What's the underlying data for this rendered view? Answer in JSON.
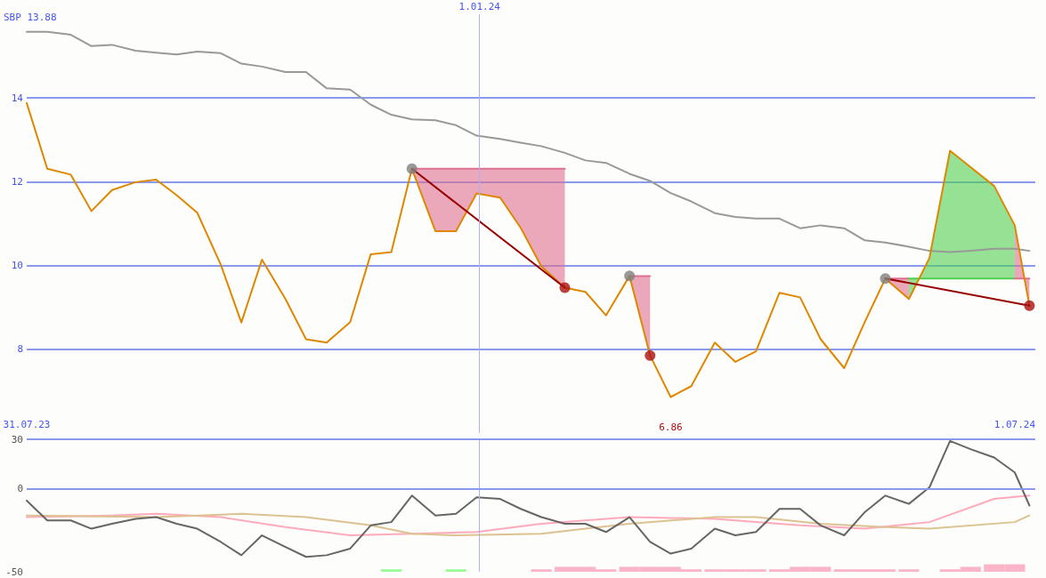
{
  "chart_data": [
    {
      "type": "line",
      "x": [
        "2023-07-31",
        "2023-08-07",
        "2023-08-15",
        "2023-08-22",
        "2023-08-29",
        "2023-09-06",
        "2023-09-13",
        "2023-09-20",
        "2023-09-27",
        "2023-10-05",
        "2023-10-12",
        "2023-10-19",
        "2023-10-27",
        "2023-11-03",
        "2023-11-10",
        "2023-11-18",
        "2023-11-25",
        "2023-12-02",
        "2023-12-09",
        "2023-12-17",
        "2023-12-24",
        "2023-12-31",
        "2024-01-08",
        "2024-01-15",
        "2024-01-22",
        "2024-01-30",
        "2024-02-06",
        "2024-02-13",
        "2024-02-21",
        "2024-02-28",
        "2024-03-06",
        "2024-03-13",
        "2024-03-21",
        "2024-03-28",
        "2024-04-04",
        "2024-04-12",
        "2024-04-19",
        "2024-04-26",
        "2024-05-04",
        "2024-05-11",
        "2024-05-18",
        "2024-05-26",
        "2024-06-02",
        "2024-06-09",
        "2024-06-16",
        "2024-06-24",
        "2024-07-01",
        "2024-07-06"
      ],
      "xlim": [
        "2023-07-31",
        "2024-07-08"
      ],
      "xticks": [
        {
          "value": "2023-07-31",
          "label": "31.07.23"
        },
        {
          "value": "2024-07-01",
          "label": "1.07.24"
        }
      ],
      "ylim": [
        6,
        16
      ],
      "yticks": [
        8,
        10,
        12,
        14
      ],
      "grid": "y",
      "marker": "none",
      "line_style": "solid",
      "ref_lines": [
        {
          "axis": "x",
          "value": "2024-01-01",
          "label": "1.01.24",
          "color": "#aab4f4"
        }
      ],
      "annotations": [
        "SBP 13.88",
        {
          "text": "6.86",
          "x": "2024-03-06",
          "y": 6.86
        }
      ],
      "series": [
        {
          "color": "#999999",
          "values": [
            15.58,
            15.58,
            15.51,
            15.24,
            15.27,
            15.13,
            15.08,
            15.04,
            15.11,
            15.07,
            14.82,
            14.75,
            14.62,
            14.62,
            14.23,
            14.2,
            13.84,
            13.6,
            13.49,
            13.47,
            13.35,
            13.1,
            13.02,
            12.93,
            12.85,
            12.69,
            12.51,
            12.45,
            12.19,
            12.02,
            11.73,
            11.53,
            11.25,
            11.16,
            11.12,
            11.12,
            10.89,
            10.96,
            10.89,
            10.6,
            10.55,
            10.45,
            10.35,
            10.32,
            10.35,
            10.4,
            10.4,
            10.35
          ]
        },
        {
          "type": "line",
          "color": "#e07090",
          "x": [
            "2023-12-09",
            "2023-12-17",
            "2023-12-24",
            "2023-12-31",
            "2024-01-08",
            "2024-01-15",
            "2024-01-22",
            "2024-01-30"
          ],
          "values": [
            12.31,
            12.31,
            12.31,
            12.31,
            12.31,
            12.31,
            12.31,
            12.31
          ],
          "lower": [
            12.31,
            10.82,
            10.82,
            11.72,
            11.62,
            10.9,
            9.98,
            9.47
          ],
          "upper": [
            12.31,
            12.31,
            12.31,
            12.31,
            12.31,
            12.31,
            12.31,
            12.31
          ]
        },
        {
          "type": "line",
          "color": "#e07090",
          "x": [
            "2024-02-21",
            "2024-02-28"
          ],
          "values": [
            9.75,
            9.75
          ],
          "lower": [
            9.75,
            7.85
          ],
          "upper": [
            9.75,
            9.75
          ]
        },
        {
          "type": "line",
          "color": "#e07090",
          "x": [
            "2024-05-18",
            "2024-05-26"
          ],
          "values": [
            9.69,
            9.69
          ],
          "lower": [
            9.69,
            9.2
          ],
          "upper": [
            9.69,
            9.69
          ]
        },
        {
          "type": "line",
          "color": "#50d050",
          "x": [
            "2024-05-26",
            "2024-06-02",
            "2024-06-09",
            "2024-06-16",
            "2024-06-24",
            "2024-07-01"
          ],
          "values": [
            9.69,
            9.69,
            9.69,
            9.69,
            9.69,
            9.69
          ],
          "lower": [
            9.69,
            9.69,
            9.69,
            9.69,
            9.69,
            9.69
          ],
          "upper": [
            9.2,
            10.18,
            12.74,
            12.35,
            11.9,
            10.96
          ]
        },
        {
          "type": "line",
          "color": "#e07090",
          "x": [
            "2024-07-01",
            "2024-07-06"
          ],
          "values": [
            9.69,
            9.69
          ],
          "lower": [
            9.69,
            9.69
          ],
          "upper": [
            10.96,
            9.04
          ]
        },
        {
          "color": "#dd8800",
          "values": [
            13.88,
            12.31,
            12.17,
            11.3,
            11.8,
            11.99,
            12.05,
            11.68,
            11.26,
            10.02,
            8.64,
            10.14,
            9.2,
            8.24,
            8.16,
            8.65,
            10.27,
            10.32,
            12.31,
            10.82,
            10.82,
            11.72,
            11.62,
            10.9,
            9.98,
            9.47,
            9.37,
            8.81,
            9.75,
            7.85,
            6.86,
            7.12,
            8.16,
            7.7,
            7.95,
            9.35,
            9.24,
            8.24,
            7.55,
            8.65,
            9.69,
            9.2,
            10.18,
            12.74,
            12.35,
            11.9,
            10.96,
            9.04
          ]
        },
        {
          "color": "#990000",
          "x": [
            "2023-12-09",
            "2024-01-30"
          ],
          "values": [
            12.31,
            9.47
          ]
        },
        {
          "color": "#990000",
          "x": [
            "2024-05-18",
            "2024-07-06"
          ],
          "values": [
            9.69,
            9.04
          ]
        },
        {
          "type": "scatter",
          "marker": "circle",
          "color": "#808080",
          "x": [
            "2023-12-09",
            "2024-02-21",
            "2024-05-18"
          ],
          "values": [
            12.31,
            9.75,
            9.69
          ]
        },
        {
          "type": "scatter",
          "marker": "circle",
          "color": "#aa1111",
          "x": [
            "2024-01-30",
            "2024-02-28",
            "2024-07-06"
          ],
          "values": [
            9.47,
            7.85,
            9.04
          ]
        }
      ]
    },
    {
      "type": "line",
      "x": [
        "2023-07-31",
        "2023-08-07",
        "2023-08-15",
        "2023-08-22",
        "2023-08-29",
        "2023-09-06",
        "2023-09-13",
        "2023-09-20",
        "2023-09-27",
        "2023-10-05",
        "2023-10-12",
        "2023-10-19",
        "2023-10-27",
        "2023-11-03",
        "2023-11-10",
        "2023-11-18",
        "2023-11-25",
        "2023-12-02",
        "2023-12-09",
        "2023-12-17",
        "2023-12-24",
        "2023-12-31",
        "2024-01-08",
        "2024-01-15",
        "2024-01-22",
        "2024-01-30",
        "2024-02-06",
        "2024-02-13",
        "2024-02-21",
        "2024-02-28",
        "2024-03-06",
        "2024-03-13",
        "2024-03-21",
        "2024-03-28",
        "2024-04-04",
        "2024-04-12",
        "2024-04-19",
        "2024-04-26",
        "2024-05-04",
        "2024-05-11",
        "2024-05-18",
        "2024-05-26",
        "2024-06-02",
        "2024-06-09",
        "2024-06-16",
        "2024-06-24",
        "2024-07-01",
        "2024-07-06"
      ],
      "xlim": [
        "2023-07-31",
        "2024-07-08"
      ],
      "ylim": [
        -50,
        30
      ],
      "yticks": [
        30,
        0,
        -50
      ],
      "tick_labels": "y",
      "marker": "none",
      "line_style": "solid",
      "ref_lines": [
        {
          "axis": "x",
          "value": "2024-01-01",
          "color": "#aab4f4"
        },
        {
          "axis": "y",
          "value": 30,
          "color": "#8899ee"
        },
        {
          "axis": "y",
          "value": 0,
          "color": "#8899ee"
        }
      ],
      "series": [
        {
          "type": "bar",
          "color": "#98fb98",
          "x": [
            "2023-12-02",
            "2023-12-24"
          ],
          "values": [
            1.5,
            1.5
          ],
          "base": [
            -50,
            -50
          ]
        },
        {
          "type": "bar",
          "color": "#fbb4c8",
          "x": [
            "2024-01-22",
            "2024-01-30",
            "2024-02-06",
            "2024-02-13",
            "2024-02-21",
            "2024-02-28",
            "2024-03-06",
            "2024-03-13",
            "2024-03-21",
            "2024-03-28",
            "2024-04-04",
            "2024-04-12",
            "2024-04-19",
            "2024-04-26",
            "2024-05-04",
            "2024-05-11",
            "2024-05-18",
            "2024-05-26",
            "2024-06-09",
            "2024-06-16",
            "2024-06-24",
            "2024-07-01"
          ],
          "values": [
            1.5,
            3,
            3,
            1.5,
            3,
            3,
            3,
            1.5,
            1.5,
            1.5,
            1.5,
            1.5,
            3,
            3,
            1.5,
            1.5,
            1.5,
            1.5,
            1.5,
            3,
            4.5,
            4.5
          ],
          "base": [
            -50,
            -50,
            -50,
            -50,
            -50,
            -50,
            -50,
            -50,
            -50,
            -50,
            -50,
            -50,
            -50,
            -50,
            -50,
            -50,
            -50,
            -50,
            -50,
            -50,
            -50,
            -50
          ]
        },
        {
          "color": "#ffaabb",
          "x": [
            "2023-07-31",
            "2023-08-29",
            "2023-09-13",
            "2023-10-05",
            "2023-10-27",
            "2023-11-18",
            "2023-12-09",
            "2023-12-31",
            "2024-01-22",
            "2024-02-21",
            "2024-03-21",
            "2024-04-19",
            "2024-05-11",
            "2024-06-02",
            "2024-06-24",
            "2024-07-06"
          ],
          "values": [
            -17,
            -16,
            -15,
            -17,
            -23,
            -28,
            -27,
            -26,
            -21,
            -17,
            -18,
            -22,
            -24,
            -20,
            -6,
            -4
          ]
        },
        {
          "color": "#dcc290",
          "x": [
            "2023-07-31",
            "2023-09-13",
            "2023-10-12",
            "2023-11-03",
            "2023-11-25",
            "2023-12-09",
            "2023-12-24",
            "2024-01-22",
            "2024-02-06",
            "2024-02-21",
            "2024-03-21",
            "2024-04-04",
            "2024-04-26",
            "2024-05-18",
            "2024-06-02",
            "2024-07-01",
            "2024-07-06"
          ],
          "values": [
            -16,
            -17,
            -15,
            -17,
            -22,
            -27,
            -28,
            -27,
            -24,
            -21,
            -17,
            -17,
            -21,
            -23,
            -24,
            -20,
            -16
          ]
        },
        {
          "color": "#666666",
          "values": [
            -7,
            -19,
            -19,
            -24,
            -21,
            -18,
            -17,
            -21,
            -24,
            -32,
            -40,
            -28,
            -35,
            -41,
            -40,
            -36,
            -22,
            -20,
            -4,
            -16,
            -15,
            -5,
            -6,
            -12,
            -17,
            -21,
            -21,
            -26,
            -17,
            -32,
            -39,
            -36,
            -24,
            -28,
            -26,
            -12,
            -12,
            -22,
            -28,
            -14,
            -4,
            -9,
            1,
            29,
            24,
            19,
            10,
            -10
          ]
        }
      ]
    }
  ]
}
